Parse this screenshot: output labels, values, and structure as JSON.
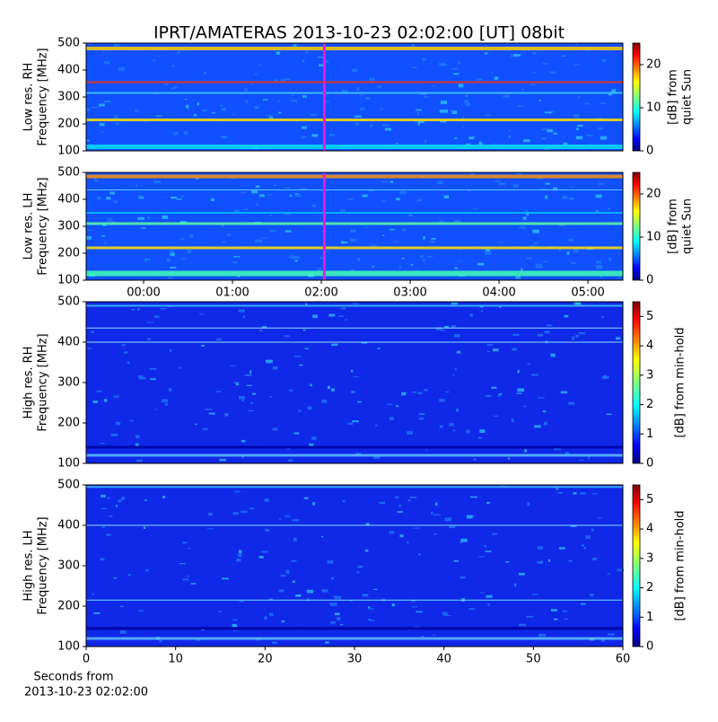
{
  "title": "IPRT/AMATERAS 2013-10-23 02:02:00 [UT]   08bit",
  "chart_data": [
    {
      "type": "spectrogram",
      "ylabel": [
        "Low res. RH",
        "Frequency [MHz]"
      ],
      "ylim": [
        100,
        500
      ],
      "yticks": [
        100,
        200,
        300,
        400,
        500
      ],
      "xlim": [
        -38.8,
        323.6
      ],
      "cursor": {
        "x": 122,
        "color": "#e020e0"
      },
      "colorbar": {
        "label": [
          "[dB] from",
          "quiet Sun"
        ],
        "lim": [
          0,
          25
        ],
        "ticks": [
          0,
          10,
          20
        ]
      }
    },
    {
      "type": "spectrogram",
      "ylabel": [
        "Low res. LH",
        "Frequency [MHz]"
      ],
      "ylim": [
        100,
        500
      ],
      "yticks": [
        100,
        200,
        300,
        400,
        500
      ],
      "xlim": [
        -38.8,
        323.6
      ],
      "cursor": {
        "x": 122,
        "color": "#e020e0"
      },
      "xticks": [
        {
          "value": 0,
          "label": "00:00"
        },
        {
          "value": 60,
          "label": "01:00"
        },
        {
          "value": 120,
          "label": "02:00"
        },
        {
          "value": 180,
          "label": "03:00"
        },
        {
          "value": 240,
          "label": "04:00"
        },
        {
          "value": 300,
          "label": "05:00"
        }
      ],
      "colorbar": {
        "label": [
          "[dB] from",
          "quiet Sun"
        ],
        "lim": [
          0,
          25
        ],
        "ticks": [
          0,
          10,
          20
        ]
      }
    },
    {
      "type": "spectrogram",
      "ylabel": [
        "High res. RH",
        "Frequency [MHz]"
      ],
      "ylim": [
        100,
        500
      ],
      "yticks": [
        100,
        200,
        300,
        400,
        500
      ],
      "xlim": [
        0,
        60
      ],
      "colorbar": {
        "label": [
          "[dB] from min-hold"
        ],
        "lim": [
          0,
          5.5
        ],
        "ticks": [
          0,
          1,
          2,
          3,
          4,
          5
        ]
      }
    },
    {
      "type": "spectrogram",
      "ylabel": [
        "High res. LH",
        "Frequency [MHz]"
      ],
      "ylim": [
        100,
        500
      ],
      "yticks": [
        100,
        200,
        300,
        400,
        500
      ],
      "xlim": [
        0,
        60
      ],
      "xticks": [
        0,
        10,
        20,
        30,
        40,
        50,
        60
      ],
      "xlabel": [
        "Seconds from",
        "2013-10-23 02:02:00"
      ],
      "colorbar": {
        "label": [
          "[dB] from min-hold"
        ],
        "lim": [
          0,
          5.5
        ],
        "ticks": [
          0,
          1,
          2,
          3,
          4,
          5
        ]
      }
    }
  ]
}
